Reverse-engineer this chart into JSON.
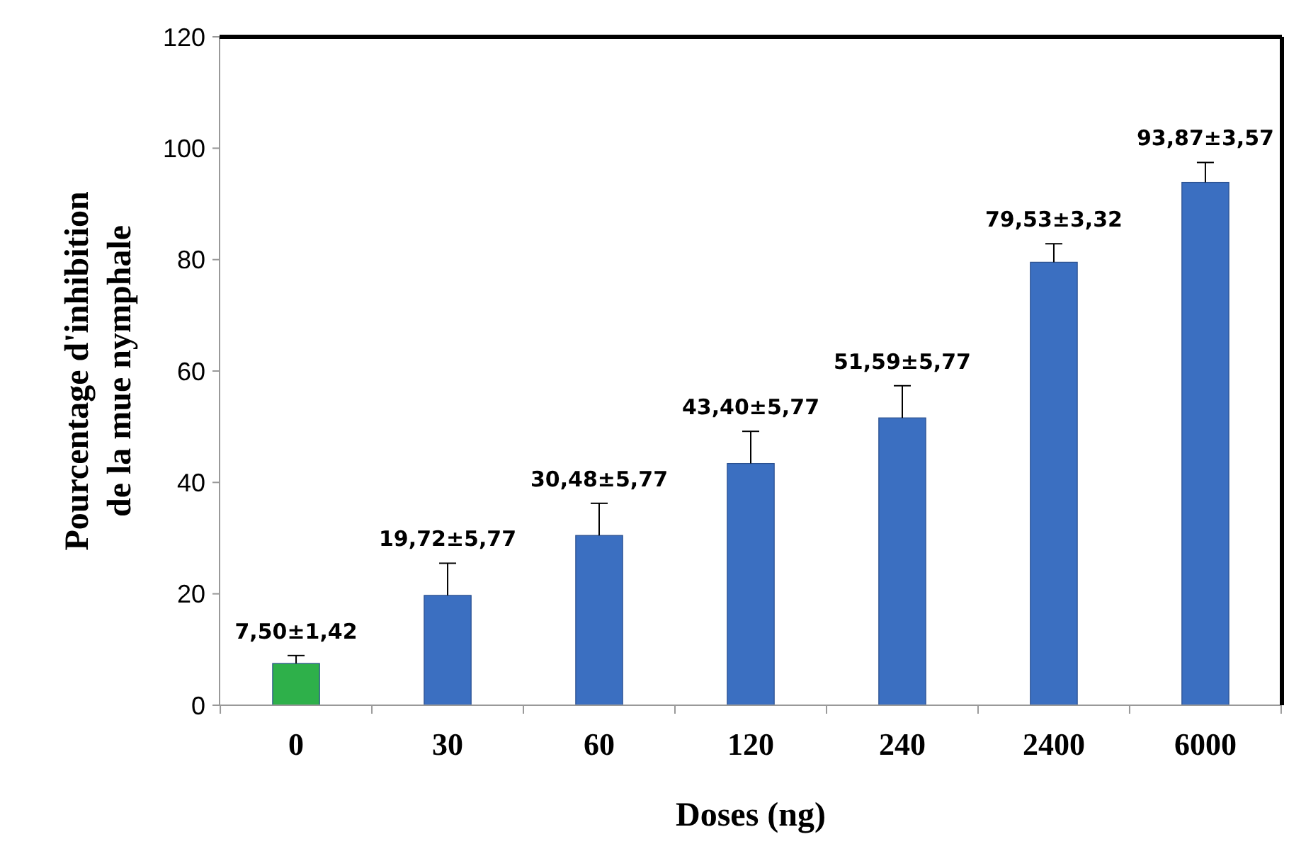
{
  "chart_data": {
    "type": "bar",
    "xlabel": "Doses (ng)",
    "ylabel": "Pourcentage d'inhibition\nde la mue nymphale",
    "categories": [
      "0",
      "30",
      "60",
      "120",
      "240",
      "2400",
      "6000"
    ],
    "values": [
      7.5,
      19.72,
      30.48,
      43.4,
      51.59,
      79.53,
      93.87
    ],
    "colors": [
      "#2eb04a",
      "#3b6fc1",
      "#3b6fc1",
      "#3b6fc1",
      "#3b6fc1",
      "#3b6fc1",
      "#3b6fc1"
    ],
    "errors": [
      [
        7.5,
        8.92
      ],
      [
        19.72,
        25.49
      ],
      [
        30.48,
        36.25
      ],
      [
        43.4,
        49.17
      ],
      [
        51.59,
        57.36
      ],
      [
        79.53,
        82.85
      ],
      [
        93.87,
        97.44
      ]
    ],
    "value_labels": [
      "7,50±1,42",
      "19,72±5,77",
      "30,48±5,77",
      "43,40±5,77",
      "51,59±5,77",
      "79,53±3,32",
      "93,87±3,57"
    ],
    "ylim": [
      0,
      120
    ],
    "yticks": [
      0,
      20,
      40,
      60,
      80,
      100,
      120
    ],
    "grid": false
  }
}
